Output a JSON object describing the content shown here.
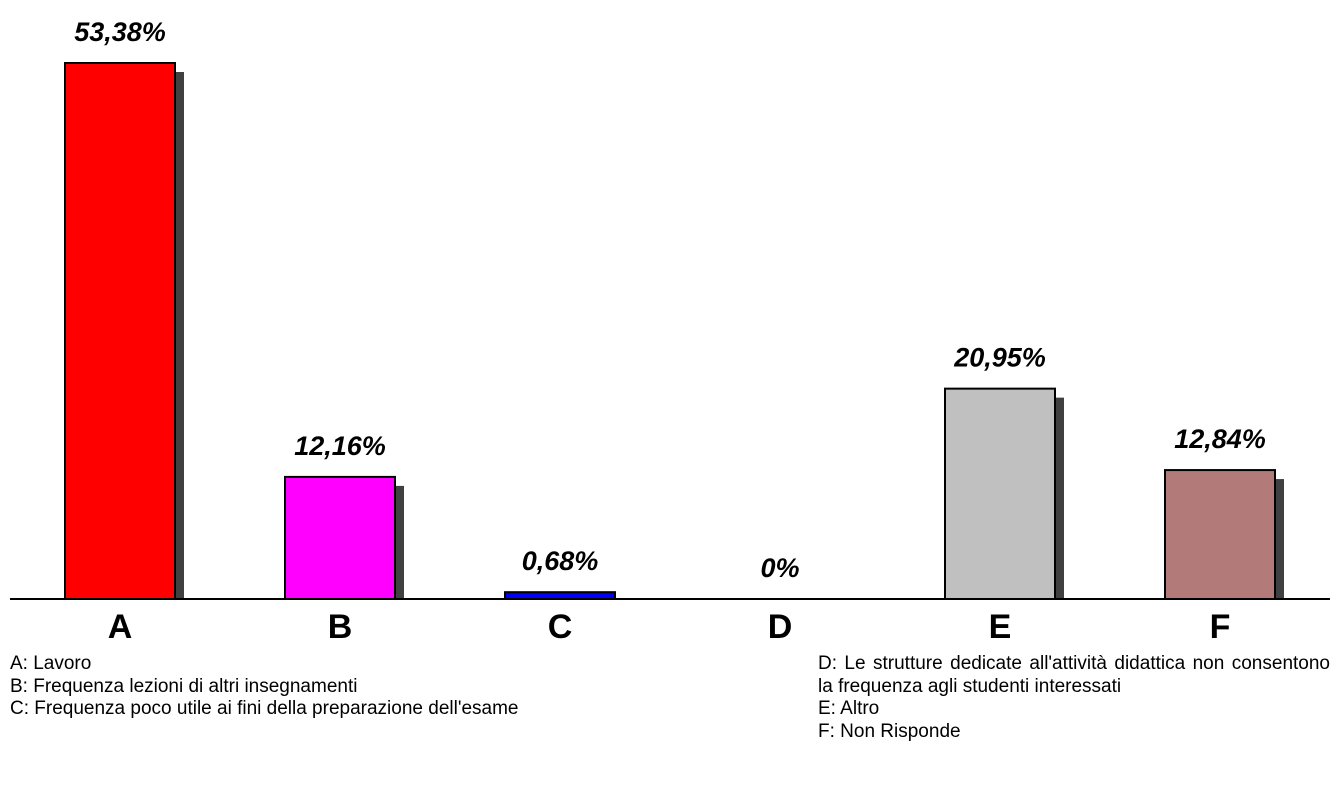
{
  "chart_data": {
    "type": "bar",
    "categories": [
      "A",
      "B",
      "C",
      "D",
      "E",
      "F"
    ],
    "values": [
      53.38,
      12.16,
      0.68,
      0,
      20.95,
      12.84
    ],
    "value_labels": [
      "53,38%",
      "12,16%",
      "0,68%",
      "0%",
      "20,95%",
      "12,84%"
    ],
    "colors": [
      "#ff0000",
      "#ff00ff",
      "#0000ff",
      "#808080",
      "#c0c0c0",
      "#b37a7a"
    ],
    "ylim": [
      0,
      53.38
    ],
    "grid": false,
    "legend_placement": "bottom",
    "legend": [
      "A: Lavoro",
      "B: Frequenza lezioni di altri insegnamenti",
      "C: Frequenza poco utile ai fini della preparazione dell'esame",
      "D: Le strutture dedicate all'attività didattica non consentono la frequenza agli studenti interessati",
      "E: Altro",
      "F: Non Risponde"
    ]
  }
}
